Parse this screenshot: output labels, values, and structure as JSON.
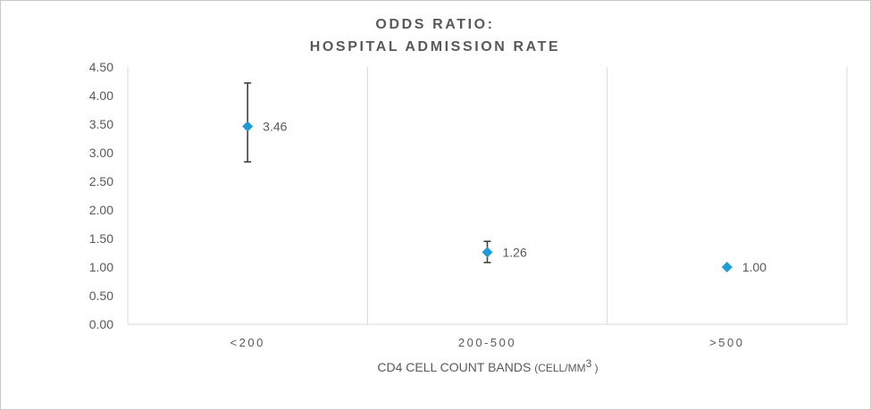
{
  "chart_data": {
    "type": "scatter",
    "title_lines": [
      "ODDS RATIO:",
      "HOSPITAL ADMISSION RATE"
    ],
    "xlabel_parts": {
      "main": "CD4  CELL COUNT BANDS",
      "unit_prefix": "(CELL/MM",
      "unit_sup": "3",
      "unit_suffix": ")"
    },
    "ylabel": "",
    "ylim": [
      0,
      4.5
    ],
    "y_ticks": [
      "0.00",
      "0.50",
      "1.00",
      "1.50",
      "2.00",
      "2.50",
      "3.00",
      "3.50",
      "4.00",
      "4.50"
    ],
    "categories": [
      "<200",
      "200-500",
      ">500"
    ],
    "values": [
      3.46,
      1.26,
      1.0
    ],
    "data_labels": [
      "3.46",
      "1.26",
      "1.00"
    ],
    "error_low": [
      2.84,
      1.08,
      null
    ],
    "error_high": [
      4.22,
      1.45,
      null
    ],
    "grid": "vertical category separators",
    "marker": "diamond",
    "marker_color": "#1f9bd7",
    "error_color": "#404040"
  }
}
